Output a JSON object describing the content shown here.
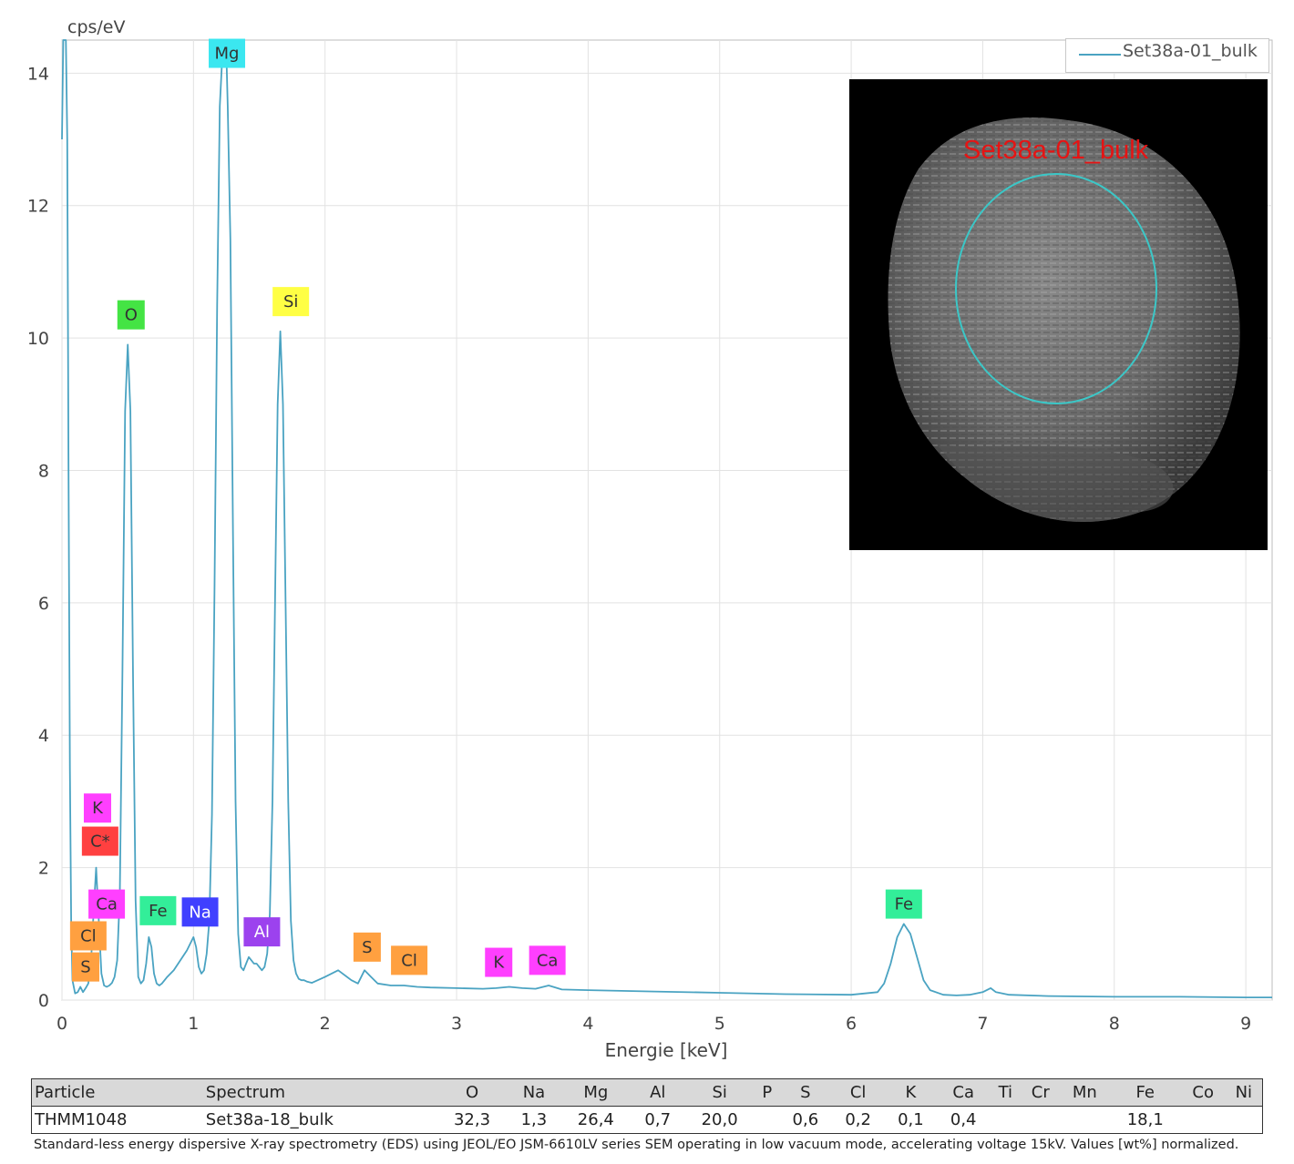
{
  "chart_data": {
    "type": "line",
    "ylabel": "cps/eV",
    "xlabel": "Energie [keV]",
    "xlim": [
      0,
      9.2
    ],
    "ylim": [
      0,
      14.5
    ],
    "x_ticks": [
      0,
      1,
      2,
      3,
      4,
      5,
      6,
      7,
      8,
      9
    ],
    "y_ticks": [
      0,
      2,
      4,
      6,
      8,
      10,
      12,
      14
    ],
    "series": [
      {
        "name": "Set38a-01_bulk",
        "color": "#4aa3c2",
        "x": [
          0.0,
          0.01,
          0.02,
          0.03,
          0.04,
          0.05,
          0.06,
          0.07,
          0.08,
          0.1,
          0.12,
          0.14,
          0.16,
          0.18,
          0.2,
          0.22,
          0.24,
          0.26,
          0.28,
          0.3,
          0.32,
          0.34,
          0.36,
          0.38,
          0.4,
          0.42,
          0.44,
          0.46,
          0.48,
          0.5,
          0.52,
          0.54,
          0.56,
          0.58,
          0.6,
          0.62,
          0.64,
          0.66,
          0.68,
          0.7,
          0.72,
          0.74,
          0.76,
          0.78,
          0.8,
          0.85,
          0.9,
          0.95,
          1.0,
          1.02,
          1.04,
          1.06,
          1.08,
          1.1,
          1.12,
          1.14,
          1.16,
          1.18,
          1.2,
          1.22,
          1.24,
          1.25,
          1.26,
          1.28,
          1.3,
          1.32,
          1.34,
          1.36,
          1.38,
          1.4,
          1.42,
          1.44,
          1.46,
          1.48,
          1.5,
          1.52,
          1.54,
          1.56,
          1.58,
          1.6,
          1.62,
          1.64,
          1.66,
          1.68,
          1.7,
          1.72,
          1.74,
          1.76,
          1.78,
          1.8,
          1.82,
          1.84,
          1.86,
          1.88,
          1.9,
          2.0,
          2.1,
          2.2,
          2.25,
          2.3,
          2.35,
          2.4,
          2.5,
          2.6,
          2.7,
          2.8,
          3.0,
          3.2,
          3.3,
          3.4,
          3.5,
          3.6,
          3.7,
          3.8,
          4.0,
          4.5,
          5.0,
          5.5,
          6.0,
          6.2,
          6.25,
          6.3,
          6.35,
          6.4,
          6.45,
          6.5,
          6.55,
          6.6,
          6.7,
          6.8,
          6.9,
          7.0,
          7.06,
          7.1,
          7.2,
          7.5,
          8.0,
          8.5,
          9.0,
          9.2
        ],
        "y": [
          13.0,
          14.5,
          14.5,
          14.5,
          13.0,
          8.0,
          3.5,
          1.2,
          0.3,
          0.1,
          0.12,
          0.2,
          0.12,
          0.18,
          0.25,
          0.55,
          1.3,
          2.0,
          1.2,
          0.4,
          0.22,
          0.2,
          0.22,
          0.26,
          0.35,
          0.6,
          1.6,
          5.0,
          8.9,
          9.9,
          8.9,
          5.0,
          1.5,
          0.35,
          0.25,
          0.3,
          0.55,
          0.95,
          0.8,
          0.4,
          0.25,
          0.22,
          0.25,
          0.3,
          0.35,
          0.45,
          0.6,
          0.75,
          0.95,
          0.8,
          0.5,
          0.4,
          0.45,
          0.7,
          1.2,
          2.8,
          6.2,
          10.5,
          13.5,
          14.3,
          14.4,
          14.3,
          13.5,
          11.5,
          7.0,
          3.0,
          1.0,
          0.5,
          0.45,
          0.55,
          0.65,
          0.6,
          0.55,
          0.55,
          0.5,
          0.45,
          0.5,
          0.7,
          1.3,
          3.0,
          6.0,
          9.0,
          10.1,
          9.0,
          6.0,
          3.0,
          1.2,
          0.6,
          0.4,
          0.32,
          0.3,
          0.3,
          0.28,
          0.27,
          0.26,
          0.35,
          0.45,
          0.3,
          0.25,
          0.45,
          0.35,
          0.25,
          0.22,
          0.22,
          0.2,
          0.19,
          0.18,
          0.17,
          0.18,
          0.2,
          0.18,
          0.17,
          0.22,
          0.16,
          0.15,
          0.13,
          0.11,
          0.09,
          0.08,
          0.12,
          0.25,
          0.55,
          0.95,
          1.15,
          1.0,
          0.65,
          0.3,
          0.15,
          0.08,
          0.07,
          0.08,
          0.12,
          0.18,
          0.12,
          0.08,
          0.06,
          0.05,
          0.05,
          0.04,
          0.04
        ]
      }
    ],
    "peak_labels": [
      {
        "text": "Mg",
        "x": 1.254,
        "y": 14.3,
        "color": "#3be7f0"
      },
      {
        "text": "O",
        "x": 0.525,
        "y": 10.35,
        "color": "#44e444"
      },
      {
        "text": "Si",
        "x": 1.74,
        "y": 10.55,
        "color": "#ffff44"
      },
      {
        "text": "K",
        "x": 0.27,
        "y": 2.9,
        "color": "#ff3fff"
      },
      {
        "text": "C*",
        "x": 0.29,
        "y": 2.4,
        "color": "#ff4040"
      },
      {
        "text": "Ca",
        "x": 0.34,
        "y": 1.45,
        "color": "#ff3fff"
      },
      {
        "text": "Cl",
        "x": 0.2,
        "y": 0.97,
        "color": "#ffa040"
      },
      {
        "text": "S",
        "x": 0.18,
        "y": 0.5,
        "color": "#ffa040"
      },
      {
        "text": "Fe",
        "x": 0.73,
        "y": 1.35,
        "color": "#33ee99"
      },
      {
        "text": "Na",
        "x": 1.05,
        "y": 1.33,
        "color": "#4040ff"
      },
      {
        "text": "Al",
        "x": 1.52,
        "y": 1.03,
        "color": "#9c42ee"
      },
      {
        "text": "S",
        "x": 2.32,
        "y": 0.8,
        "color": "#ffa040"
      },
      {
        "text": "Cl",
        "x": 2.64,
        "y": 0.6,
        "color": "#ffa040"
      },
      {
        "text": "K",
        "x": 3.32,
        "y": 0.57,
        "color": "#ff3fff"
      },
      {
        "text": "Ca",
        "x": 3.69,
        "y": 0.6,
        "color": "#ff3fff"
      },
      {
        "text": "Fe",
        "x": 6.4,
        "y": 1.45,
        "color": "#33ee99"
      }
    ],
    "grid": true,
    "legend": "top-right"
  },
  "inset": {
    "label": "Set38a-01_bulk"
  },
  "table": {
    "headers": [
      "Particle",
      "Spectrum",
      "O",
      "Na",
      "Mg",
      "Al",
      "Si",
      "P",
      "S",
      "Cl",
      "K",
      "Ca",
      "Ti",
      "Cr",
      "Mn",
      "Fe",
      "Co",
      "Ni"
    ],
    "rows": [
      [
        "THMM1048",
        "Set38a-18_bulk",
        "32,3",
        "1,3",
        "26,4",
        "0,7",
        "20,0",
        "",
        "0,6",
        "0,2",
        "0,1",
        "0,4",
        "",
        "",
        "",
        "18,1",
        "",
        ""
      ]
    ]
  },
  "caption": "Standard-less energy dispersive X-ray spectrometry (EDS) using JEOL/EO JSM-6610LV series SEM operating in low vacuum mode, accelerating voltage 15kV. Values [wt%] normalized."
}
